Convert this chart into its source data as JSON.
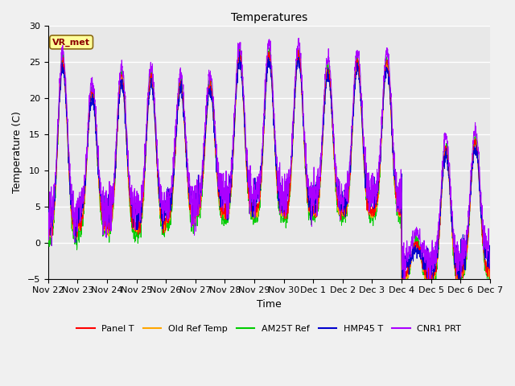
{
  "title": "Temperatures",
  "xlabel": "Time",
  "ylabel": "Temperature (C)",
  "annotation_label": "VR_met",
  "ylim": [
    -5,
    30
  ],
  "yticks": [
    -5,
    0,
    5,
    10,
    15,
    20,
    25,
    30
  ],
  "series_colors": {
    "Panel T": "#ff0000",
    "Old Ref Temp": "#ffa500",
    "AM25T Ref": "#00cc00",
    "HMP45 T": "#0000cd",
    "CNR1 PRT": "#aa00ff"
  },
  "legend_labels": [
    "Panel T",
    "Old Ref Temp",
    "AM25T Ref",
    "HMP45 T",
    "CNR1 PRT"
  ],
  "x_tick_labels": [
    "Nov 22",
    "Nov 23",
    "Nov 24",
    "Nov 25",
    "Nov 26",
    "Nov 27",
    "Nov 28",
    "Nov 29",
    "Nov 30",
    "Dec 1",
    "Dec 2",
    "Dec 3",
    "Dec 4",
    "Dec 5",
    "Dec 6",
    "Dec 7"
  ],
  "fig_facecolor": "#f0f0f0",
  "ax_facecolor": "#e8e8e8",
  "grid_color": "#ffffff",
  "title_fontsize": 10,
  "axis_fontsize": 9,
  "tick_fontsize": 8,
  "legend_fontsize": 8,
  "annotation_fontsize": 8,
  "annotation_color": "#8B0000",
  "annotation_bg": "#ffff99",
  "annotation_edge": "#8B6914"
}
